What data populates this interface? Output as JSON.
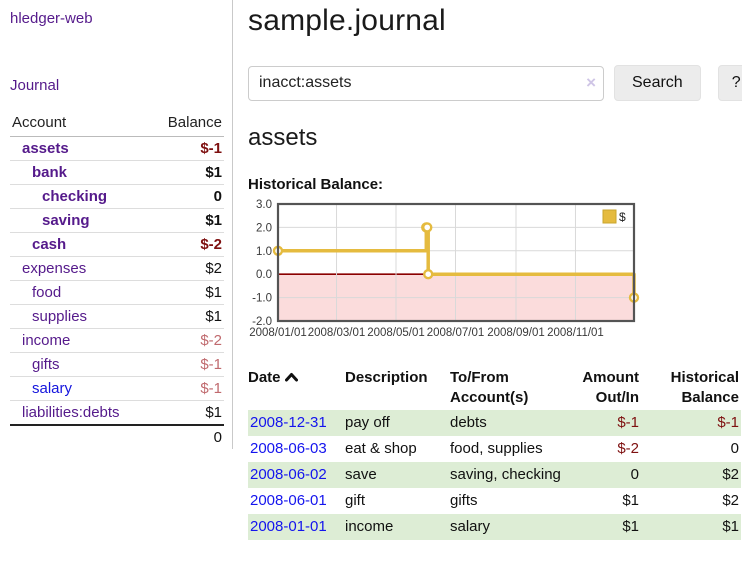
{
  "sidebar": {
    "app_title": "hledger-web",
    "journal_link": "Journal",
    "account_header": "Account",
    "balance_header": "Balance",
    "accounts": [
      {
        "name": "assets",
        "balance": "$-1"
      },
      {
        "name": "bank",
        "balance": "$1"
      },
      {
        "name": "checking",
        "balance": "0"
      },
      {
        "name": "saving",
        "balance": "$1"
      },
      {
        "name": "cash",
        "balance": "$-2"
      },
      {
        "name": "expenses",
        "balance": "$2"
      },
      {
        "name": "food",
        "balance": "$1"
      },
      {
        "name": "supplies",
        "balance": "$1"
      },
      {
        "name": "income",
        "balance": "$-2"
      },
      {
        "name": "gifts",
        "balance": "$-1"
      },
      {
        "name": "salary",
        "balance": "$-1"
      },
      {
        "name": "liabilities:debts",
        "balance": "$1"
      }
    ],
    "total": "0"
  },
  "main": {
    "title": "sample.journal",
    "search": {
      "value": "inacct:assets",
      "clear_icon": "×",
      "search_button": "Search",
      "help_button": "?"
    },
    "account_heading": "assets",
    "chart_label": "Historical Balance:"
  },
  "chart_data": {
    "type": "line",
    "title": "Historical Balance",
    "step": true,
    "x_domain": [
      "2008-01-01",
      "2008-12-31"
    ],
    "ylim": [
      -2,
      3
    ],
    "y_ticks": [
      "3.0",
      "2.0",
      "1.0",
      "0.0",
      "-1.0",
      "-2.0"
    ],
    "x_tick_labels": [
      "2008/01/01",
      "2008/03/01",
      "2008/05/01",
      "2008/07/01",
      "2008/09/01",
      "2008/11/01"
    ],
    "series": [
      {
        "name": "$",
        "color": "#e5bb3f",
        "points": [
          [
            "2008-01-01",
            1
          ],
          [
            "2008-06-01",
            2
          ],
          [
            "2008-06-02",
            2
          ],
          [
            "2008-06-03",
            0
          ],
          [
            "2008-12-31",
            -1
          ]
        ]
      }
    ],
    "legend": {
      "label": "$",
      "position": "top-right"
    },
    "grid": true,
    "negative_fill": "#fbdcdc",
    "zero_line_color": "#8b0000",
    "border_color": "#545454",
    "grid_color": "#d9d9d9"
  },
  "register": {
    "headers": {
      "date": "Date",
      "description": "Description",
      "accounts": "To/From Account(s)",
      "amount": "Amount Out/In",
      "balance": "Historical Balance"
    },
    "rows": [
      {
        "date": "2008-12-31",
        "description": "pay off",
        "accounts": "debts",
        "amount": "$-1",
        "balance": "$-1"
      },
      {
        "date": "2008-06-03",
        "description": "eat & shop",
        "accounts": "food, supplies",
        "amount": "$-2",
        "balance": "0"
      },
      {
        "date": "2008-06-02",
        "description": "save",
        "accounts": "saving, checking",
        "amount": "0",
        "balance": "$2"
      },
      {
        "date": "2008-06-01",
        "description": "gift",
        "accounts": "gifts",
        "amount": "$1",
        "balance": "$2"
      },
      {
        "date": "2008-01-01",
        "description": "income",
        "accounts": "salary",
        "amount": "$1",
        "balance": "$1"
      }
    ]
  }
}
